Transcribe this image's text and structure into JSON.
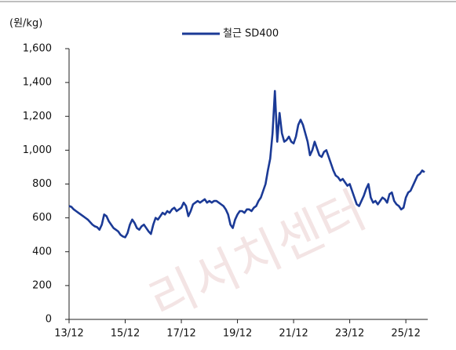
{
  "chart_data": {
    "type": "line",
    "y_axis_label": "(원/kg)",
    "watermark": "리서치센터",
    "legend": "top-center",
    "x": [
      "13/12",
      "14/01",
      "14/02",
      "14/03",
      "14/04",
      "14/05",
      "14/06",
      "14/07",
      "14/08",
      "14/09",
      "14/10",
      "14/11",
      "14/12",
      "15/01",
      "15/02",
      "15/03",
      "15/04",
      "15/05",
      "15/06",
      "15/07",
      "15/08",
      "15/09",
      "15/10",
      "15/11",
      "15/12",
      "16/01",
      "16/02",
      "16/03",
      "16/04",
      "16/05",
      "16/06",
      "16/07",
      "16/08",
      "16/09",
      "16/10",
      "16/11",
      "16/12",
      "17/01",
      "17/02",
      "17/03",
      "17/04",
      "17/05",
      "17/06",
      "17/07",
      "17/08",
      "17/09",
      "17/10",
      "17/11",
      "17/12",
      "18/01",
      "18/02",
      "18/03",
      "18/04",
      "18/05",
      "18/06",
      "18/07",
      "18/08",
      "18/09",
      "18/10",
      "18/11",
      "18/12",
      "19/01",
      "19/02",
      "19/03",
      "19/04",
      "19/05",
      "19/06",
      "19/07",
      "19/08",
      "19/09",
      "19/10",
      "19/11",
      "19/12",
      "20/01",
      "20/02",
      "20/03",
      "20/04",
      "20/05",
      "20/06",
      "20/07",
      "20/08",
      "20/09",
      "20/10",
      "20/11",
      "20/12",
      "21/01",
      "21/02",
      "21/03",
      "21/04",
      "21/05",
      "21/06",
      "21/07",
      "21/08",
      "21/09",
      "21/10",
      "21/11",
      "21/12",
      "22/01",
      "22/02",
      "22/03",
      "22/04",
      "22/05",
      "22/06",
      "22/07",
      "22/08",
      "22/09",
      "22/10",
      "22/11",
      "22/12",
      "23/01",
      "23/02",
      "23/03",
      "23/04",
      "23/05",
      "23/06",
      "23/07",
      "23/08",
      "23/09",
      "23/10",
      "23/11",
      "23/12",
      "24/01",
      "24/02",
      "24/03",
      "24/04",
      "24/05",
      "24/06",
      "24/07",
      "24/08",
      "24/09",
      "24/10",
      "24/11",
      "24/12",
      "25/01",
      "25/02",
      "25/03",
      "25/04",
      "25/05",
      "25/06",
      "25/07",
      "25/08",
      "25/09",
      "25/10",
      "25/11",
      "25/12",
      "26/01",
      "26/02",
      "26/03",
      "26/04",
      "26/05",
      "26/06",
      "26/07",
      "26/08"
    ],
    "series": [
      {
        "name": "철근 SD400",
        "color": "#1b3a96",
        "values": [
          670,
          665,
          650,
          640,
          630,
          620,
          610,
          600,
          590,
          575,
          560,
          550,
          545,
          530,
          560,
          620,
          610,
          580,
          560,
          540,
          530,
          520,
          500,
          490,
          485,
          510,
          560,
          590,
          570,
          540,
          530,
          550,
          560,
          540,
          520,
          505,
          560,
          600,
          590,
          610,
          630,
          620,
          640,
          630,
          650,
          660,
          640,
          650,
          660,
          690,
          670,
          610,
          640,
          680,
          690,
          700,
          690,
          700,
          710,
          690,
          700,
          690,
          700,
          700,
          690,
          680,
          670,
          650,
          620,
          560,
          540,
          590,
          620,
          640,
          640,
          630,
          650,
          650,
          640,
          660,
          670,
          700,
          720,
          760,
          800,
          880,
          950,
          1100,
          1350,
          1050,
          1220,
          1100,
          1050,
          1060,
          1080,
          1050,
          1040,
          1080,
          1150,
          1180,
          1150,
          1100,
          1050,
          970,
          1000,
          1050,
          1010,
          970,
          960,
          990,
          1000,
          960,
          920,
          880,
          850,
          840,
          820,
          830,
          810,
          790,
          800,
          760,
          720,
          680,
          670,
          700,
          730,
          770,
          800,
          720,
          690,
          700,
          680,
          700,
          720,
          710,
          690,
          740,
          750,
          700,
          680,
          670,
          650,
          660,
          720,
          750,
          760,
          790,
          820,
          850,
          860,
          880,
          870
        ]
      }
    ],
    "xticks": [
      "13/12",
      "15/12",
      "17/12",
      "19/12",
      "21/12",
      "23/12",
      "25/12"
    ],
    "ylim": [
      0,
      1600
    ],
    "yticks": [
      0,
      200,
      400,
      600,
      800,
      {
        "value": 1000,
        "label": "1,000"
      },
      {
        "value": 1200,
        "label": "1,200"
      },
      {
        "value": 1400,
        "label": "1,400"
      },
      {
        "value": 1600,
        "label": "1,600"
      }
    ]
  }
}
